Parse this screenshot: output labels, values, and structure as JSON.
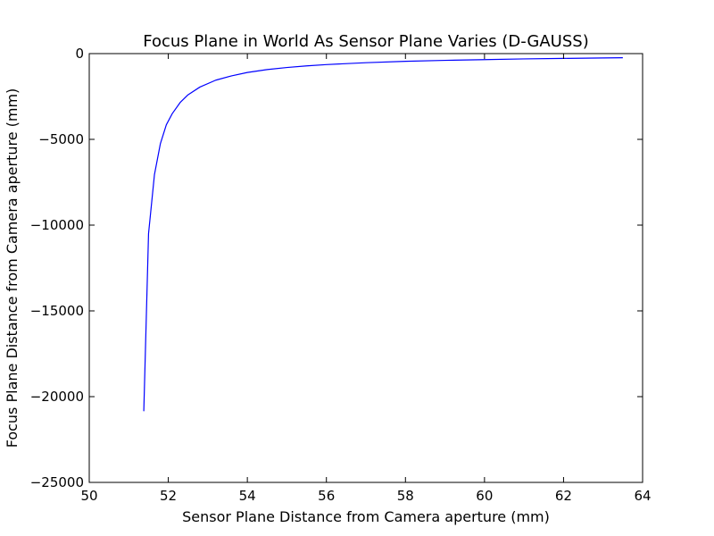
{
  "chart_data": {
    "type": "line",
    "title": "Focus Plane in World As Sensor Plane Varies (D-GAUSS)",
    "xlabel": "Sensor Plane Distance from Camera aperture (mm)",
    "ylabel": "Focus Plane Distance from Camera aperture (mm)",
    "xlim": [
      50,
      64
    ],
    "ylim": [
      -25000,
      0
    ],
    "x_ticks": [
      50,
      52,
      54,
      56,
      58,
      60,
      62,
      64
    ],
    "y_ticks": [
      0,
      -5000,
      -10000,
      -15000,
      -20000,
      -25000
    ],
    "x_tick_labels": [
      "50",
      "52",
      "54",
      "56",
      "58",
      "60",
      "62",
      "64"
    ],
    "y_tick_labels": [
      "0",
      "−5000",
      "−10000",
      "−15000",
      "−20000",
      "−25000"
    ],
    "grid": false,
    "legend": "none",
    "series": [
      {
        "color": "#0000ff",
        "x": [
          51.38,
          51.5,
          51.65,
          51.8,
          51.95,
          52.1,
          52.3,
          52.5,
          52.8,
          53.2,
          53.6,
          54.0,
          54.5,
          55.0,
          55.5,
          56.0,
          57.0,
          58.0,
          59.0,
          60.0,
          61.0,
          62.0,
          63.0,
          63.5
        ],
        "y": [
          -20850,
          -10500,
          -7050,
          -5250,
          -4150,
          -3500,
          -2850,
          -2400,
          -1950,
          -1550,
          -1300,
          -1100,
          -930,
          -810,
          -715,
          -640,
          -530,
          -450,
          -395,
          -350,
          -310,
          -280,
          -255,
          -240
        ]
      }
    ]
  }
}
